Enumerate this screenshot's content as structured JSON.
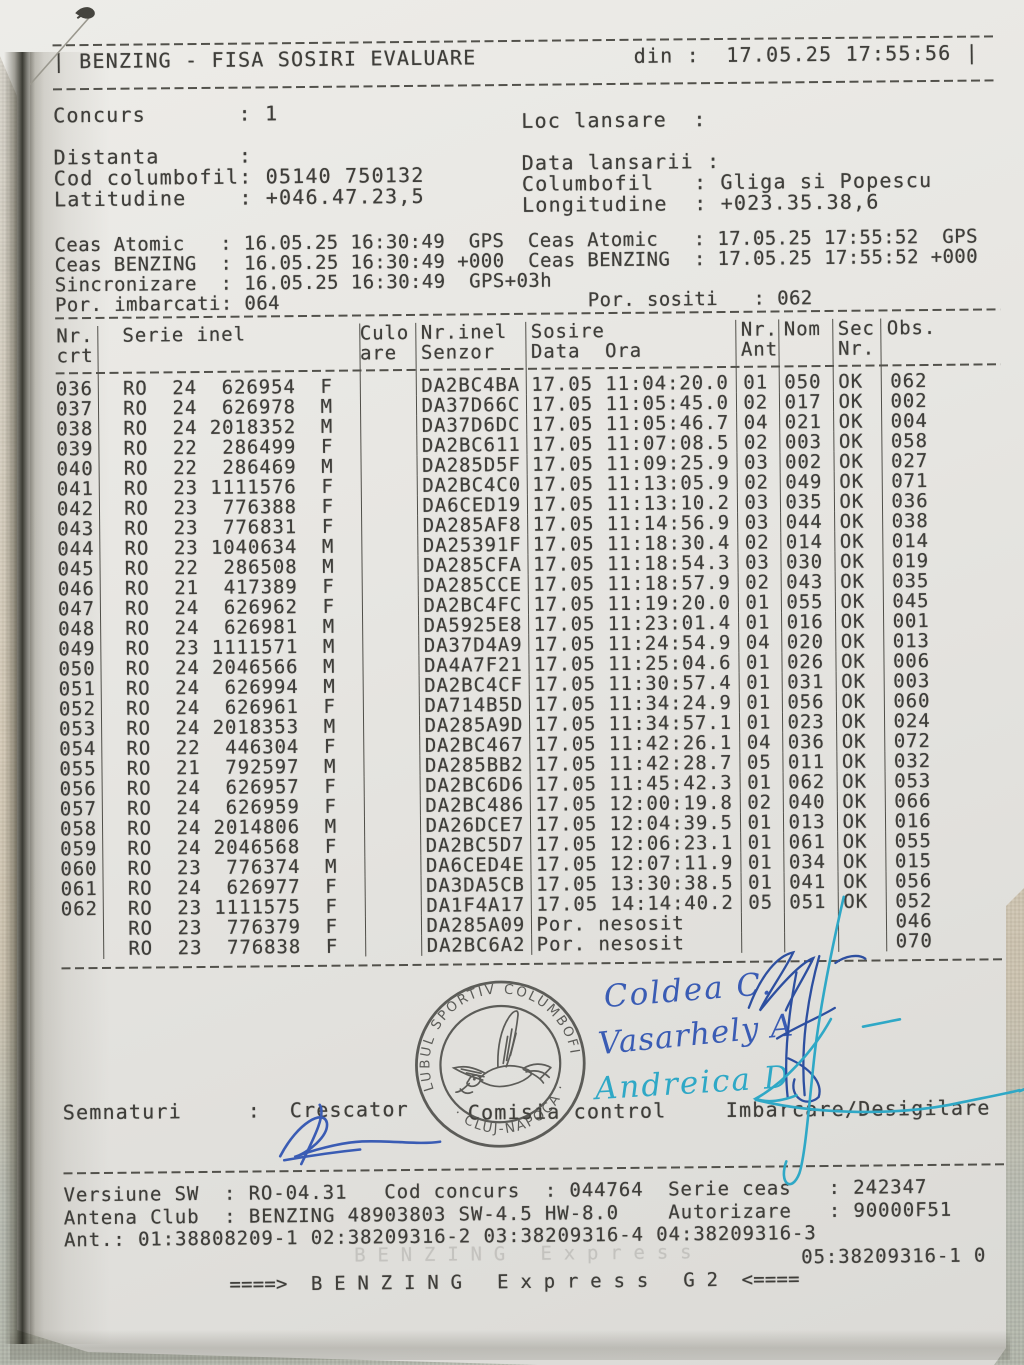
{
  "colors": {
    "ink": "#3f3e3a",
    "blue_ink": "#3a5cb4",
    "dark_blue_ink": "#2d4fa0",
    "teal_ink": "#2fa8c6",
    "stamp": "#4a4a46"
  },
  "header": {
    "title": "| BENZING - FISA SOSIRI EVALUARE",
    "din": "din :  17.05.25 17:55:56",
    "end_bar": "|"
  },
  "info_left": "Concurs       : 1\n\nDistanta      :\nCod columbofil: 05140 750132\nLatitudine    : +046.47.23,5",
  "info_right": "Loc lansare  :\n\nData lansarii :\nColumbofil   : Gliga si Popescu\nLongitudine  : +023.35.38,6",
  "clock_block": "Ceas Atomic   : 16.05.25 16:30:49  GPS  Ceas Atomic   : 17.05.25 17:55:52  GPS\nCeas BENZING  : 16.05.25 16:30:49 +000  Ceas BENZING  : 17.05.25 17:55:52 +000\nSincronizare  : 16.05.25 16:30:49  GPS+03h\nPor. imbarcati: 064                          Por. sositi   : 062",
  "table": {
    "headers": [
      [
        "Nr.",
        "crt"
      ],
      [
        "  Serie inel",
        ""
      ],
      [
        "Culo",
        "are"
      ],
      [
        "Nr.inel",
        "Senzor"
      ],
      [
        "Sosire",
        "Data  Ora"
      ],
      [
        "Nr.",
        "Ant"
      ],
      [
        "Nom",
        ""
      ],
      [
        "Sec",
        "Nr."
      ],
      [
        "Obs.",
        ""
      ]
    ],
    "rows": [
      [
        "036",
        "RO",
        "24",
        "626954",
        "F",
        "DA2BC4BA",
        "17.05 11:04:20.0",
        "01",
        "050",
        "OK",
        "062"
      ],
      [
        "037",
        "RO",
        "24",
        "626978",
        "M",
        "DA37D66C",
        "17.05 11:05:45.0",
        "02",
        "017",
        "OK",
        "002"
      ],
      [
        "038",
        "RO",
        "24",
        "2018352",
        "M",
        "DA37D6DC",
        "17.05 11:05:46.7",
        "04",
        "021",
        "OK",
        "004"
      ],
      [
        "039",
        "RO",
        "22",
        "286499",
        "F",
        "DA2BC611",
        "17.05 11:07:08.5",
        "02",
        "003",
        "OK",
        "058"
      ],
      [
        "040",
        "RO",
        "22",
        "286469",
        "M",
        "DA285D5F",
        "17.05 11:09:25.9",
        "03",
        "002",
        "OK",
        "027"
      ],
      [
        "041",
        "RO",
        "23",
        "1111576",
        "F",
        "DA2BC4C0",
        "17.05 11:13:05.9",
        "02",
        "049",
        "OK",
        "071"
      ],
      [
        "042",
        "RO",
        "23",
        "776388",
        "F",
        "DA6CED19",
        "17.05 11:13:10.2",
        "03",
        "035",
        "OK",
        "036"
      ],
      [
        "043",
        "RO",
        "23",
        "776831",
        "F",
        "DA285AF8",
        "17.05 11:14:56.9",
        "03",
        "044",
        "OK",
        "038"
      ],
      [
        "044",
        "RO",
        "23",
        "1040634",
        "M",
        "DA25391F",
        "17.05 11:18:30.4",
        "02",
        "014",
        "OK",
        "014"
      ],
      [
        "045",
        "RO",
        "22",
        "286508",
        "M",
        "DA285CFA",
        "17.05 11:18:54.3",
        "03",
        "030",
        "OK",
        "019"
      ],
      [
        "046",
        "RO",
        "21",
        "417389",
        "F",
        "DA285CCE",
        "17.05 11:18:57.9",
        "02",
        "043",
        "OK",
        "035"
      ],
      [
        "047",
        "RO",
        "24",
        "626962",
        "F",
        "DA2BC4FC",
        "17.05 11:19:20.0",
        "01",
        "055",
        "OK",
        "045"
      ],
      [
        "048",
        "RO",
        "24",
        "626981",
        "M",
        "DA5925E8",
        "17.05 11:23:01.4",
        "01",
        "016",
        "OK",
        "001"
      ],
      [
        "049",
        "RO",
        "23",
        "1111571",
        "M",
        "DA37D4A9",
        "17.05 11:24:54.9",
        "04",
        "020",
        "OK",
        "013"
      ],
      [
        "050",
        "RO",
        "24",
        "2046566",
        "M",
        "DA4A7F21",
        "17.05 11:25:04.6",
        "01",
        "026",
        "OK",
        "006"
      ],
      [
        "051",
        "RO",
        "24",
        "626994",
        "M",
        "DA2BC4CF",
        "17.05 11:30:57.4",
        "01",
        "031",
        "OK",
        "003"
      ],
      [
        "052",
        "RO",
        "24",
        "626961",
        "F",
        "DA714B5D",
        "17.05 11:34:24.9",
        "01",
        "056",
        "OK",
        "060"
      ],
      [
        "053",
        "RO",
        "24",
        "2018353",
        "M",
        "DA285A9D",
        "17.05 11:34:57.1",
        "01",
        "023",
        "OK",
        "024"
      ],
      [
        "054",
        "RO",
        "22",
        "446304",
        "F",
        "DA2BC467",
        "17.05 11:42:26.1",
        "04",
        "036",
        "OK",
        "072"
      ],
      [
        "055",
        "RO",
        "21",
        "792597",
        "M",
        "DA285BB2",
        "17.05 11:42:28.7",
        "05",
        "011",
        "OK",
        "032"
      ],
      [
        "056",
        "RO",
        "24",
        "626957",
        "F",
        "DA2BC6D6",
        "17.05 11:45:42.3",
        "01",
        "062",
        "OK",
        "053"
      ],
      [
        "057",
        "RO",
        "24",
        "626959",
        "F",
        "DA2BC486",
        "17.05 12:00:19.8",
        "02",
        "040",
        "OK",
        "066"
      ],
      [
        "058",
        "RO",
        "24",
        "2014806",
        "M",
        "DA26DCE7",
        "17.05 12:04:39.5",
        "01",
        "013",
        "OK",
        "016"
      ],
      [
        "059",
        "RO",
        "24",
        "2046568",
        "F",
        "DA2BC5D7",
        "17.05 12:06:23.1",
        "01",
        "061",
        "OK",
        "055"
      ],
      [
        "060",
        "RO",
        "23",
        "776374",
        "M",
        "DA6CED4E",
        "17.05 12:07:11.9",
        "01",
        "034",
        "OK",
        "015"
      ],
      [
        "061",
        "RO",
        "24",
        "626977",
        "F",
        "DA3DA5CB",
        "17.05 13:30:38.5",
        "01",
        "041",
        "OK",
        "056"
      ],
      [
        "062",
        "RO",
        "23",
        "1111575",
        "F",
        "DA1F4A17",
        "17.05 14:14:40.2",
        "05",
        "051",
        "OK",
        "052"
      ],
      [
        "",
        "RO",
        "23",
        "776379",
        "F",
        "DA285A09",
        "Por. nesosit",
        "",
        "",
        "",
        "046"
      ],
      [
        "",
        "RO",
        "23",
        "776838",
        "F",
        "DA2BC6A2",
        "Por. nesosit",
        "",
        "",
        "",
        "070"
      ]
    ]
  },
  "stamp": {
    "ring_top": "CLUBUL SPORTIV COLUMBOFIL",
    "ring_bottom": "· CLUJ-NAPOCA ·"
  },
  "signatures": {
    "semnaturi_label": "Semnaturi",
    "colon": ":",
    "crescator_label": "Crescator",
    "comisia_label": "Comisia control",
    "imbarcare_label": "Imbarcare/Desigilare",
    "names": [
      "Coldea C.",
      "Vasarhely A",
      "Andreica D"
    ]
  },
  "footer": {
    "lines": "Versiune SW  : RO-04.31   Cod concurs  : 044764  Serie ceas   : 242347\nAntena Club  : BENZING 48903803 SW-4.5 HW-8.0    Autorizare   : 90000F51\nAnt.: 01:38808209-1 02:38209316-2 03:38209316-4 04:38209316-3",
    "antenna5": "05:38209316-1 0",
    "benzing_line": "====>  B E N Z I N G   E x p r e s s   G 2  <====",
    "ghost_line": "B E N Z I N G   E x p r e s s"
  }
}
